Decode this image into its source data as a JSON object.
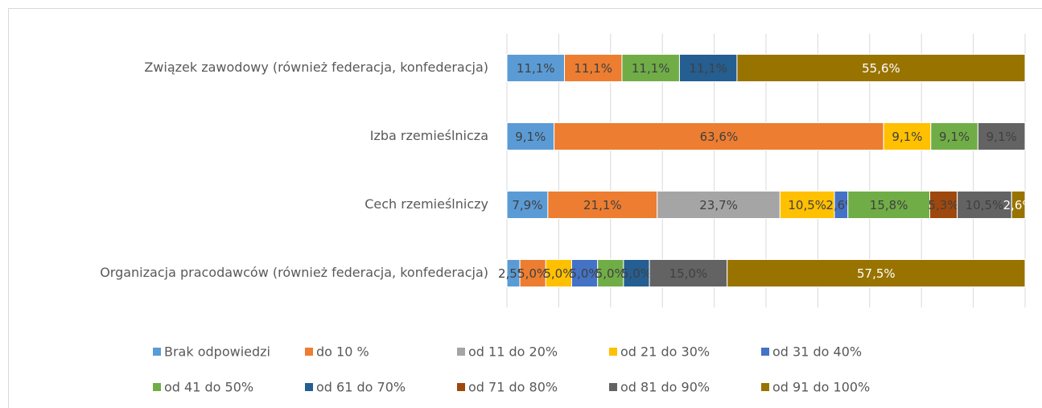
{
  "chart_data": {
    "type": "stacked_bar_horizontal",
    "categories": [
      "Związek zawodowy (również federacja, konfederacja)",
      "Izba rzemieślnicza",
      "Cech rzemieślniczy",
      "Organizacja pracodawców (również federacja, konfederacja)"
    ],
    "xlim": [
      0,
      100
    ],
    "xticks": [
      0,
      10,
      20,
      30,
      40,
      50,
      60,
      70,
      80,
      90,
      100
    ],
    "grid": true,
    "legend": "bottom",
    "series": [
      {
        "name": "Brak odpowiedzi",
        "color": "#5b9bd5",
        "values": [
          11.1,
          9.1,
          7.9,
          2.5
        ],
        "value_labels": [
          "11,1%",
          "9,1%",
          "7,9%",
          "2,5%"
        ]
      },
      {
        "name": "do 10 %",
        "color": "#ed7d31",
        "values": [
          11.1,
          63.6,
          21.1,
          5.0
        ],
        "value_labels": [
          "11,1%",
          "63,6%",
          "21,1%",
          "5,0%"
        ]
      },
      {
        "name": "od 11 do 20%",
        "color": "#a5a5a5",
        "values": [
          null,
          null,
          23.7,
          null
        ],
        "value_labels": [
          null,
          null,
          "23,7%",
          null
        ]
      },
      {
        "name": "od 21 do 30%",
        "color": "#ffc000",
        "values": [
          null,
          9.1,
          10.5,
          5.0
        ],
        "value_labels": [
          null,
          "9,1%",
          "10,5%",
          "5,0%"
        ]
      },
      {
        "name": "od 31 do 40%",
        "color": "#4472c4",
        "values": [
          null,
          null,
          2.6,
          5.0
        ],
        "value_labels": [
          null,
          null,
          "2,6%",
          "5,0%"
        ]
      },
      {
        "name": "od 41 do 50%",
        "color": "#70ad47",
        "values": [
          11.1,
          9.1,
          15.8,
          5.0
        ],
        "value_labels": [
          "11,1%",
          "9,1%",
          "15,8%",
          "5,0%"
        ]
      },
      {
        "name": "od 61 do 70%",
        "color": "#255e91",
        "values": [
          11.1,
          null,
          null,
          5.0
        ],
        "value_labels": [
          "11,1%",
          null,
          null,
          "5,0%"
        ]
      },
      {
        "name": "od 71 do 80%",
        "color": "#9e480e",
        "values": [
          null,
          null,
          5.3,
          null
        ],
        "value_labels": [
          null,
          null,
          "5,3%",
          null
        ]
      },
      {
        "name": "od 81 do 90%",
        "color": "#636363",
        "values": [
          null,
          9.1,
          10.5,
          15.0
        ],
        "value_labels": [
          null,
          "9,1%",
          "10,5%",
          "15,0%"
        ]
      },
      {
        "name": "od 91 do 100%",
        "color": "#997300",
        "values": [
          55.6,
          null,
          2.6,
          57.5
        ],
        "value_labels": [
          "55,6%",
          null,
          "2,6%",
          "57,5%"
        ]
      }
    ]
  }
}
